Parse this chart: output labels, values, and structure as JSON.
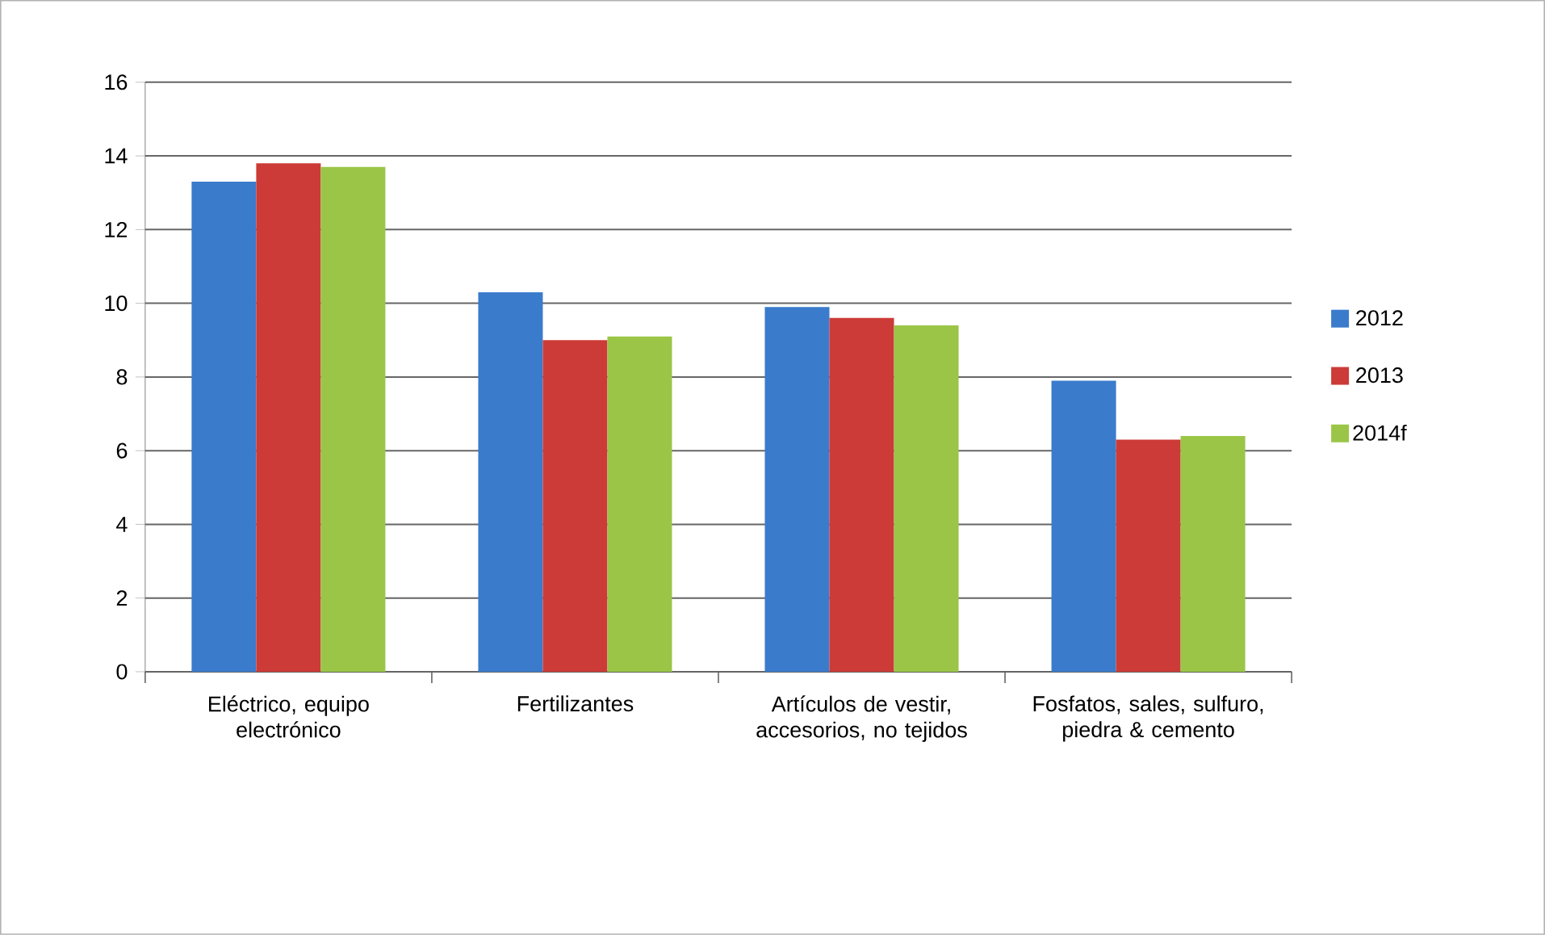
{
  "chart_data": {
    "type": "bar",
    "categories": [
      "Eléctrico, equipo electrónico",
      "Fertilizantes",
      "Artículos de vestir, accesorios, no tejidos",
      "Fosfatos, sales, sulfuro, piedra & cemento"
    ],
    "series": [
      {
        "name": "2012",
        "color": "#3a7bcc",
        "values": [
          13.3,
          10.3,
          9.9,
          7.9
        ]
      },
      {
        "name": "2013",
        "color": "#cc3b37",
        "values": [
          13.8,
          9.0,
          9.6,
          6.3
        ]
      },
      {
        "name": "2014f",
        "color": "#9bc546",
        "values": [
          13.7,
          9.1,
          9.4,
          6.4
        ]
      }
    ],
    "ylim": [
      0,
      16
    ],
    "yticks": [
      0,
      2,
      4,
      6,
      8,
      10,
      12,
      14,
      16
    ],
    "grid": "y",
    "legend": "right"
  }
}
